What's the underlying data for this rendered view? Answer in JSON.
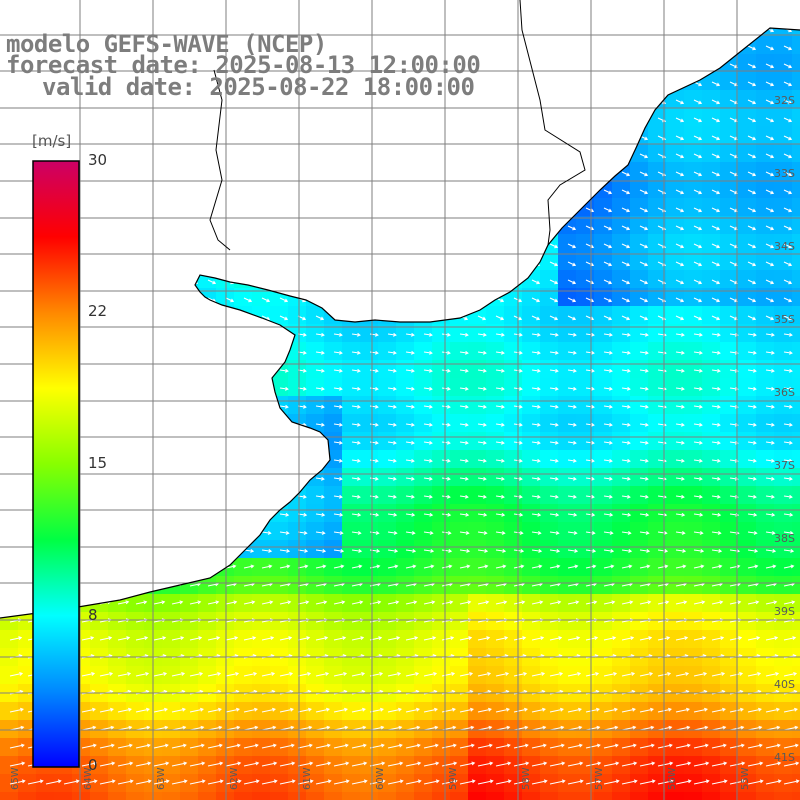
{
  "title": {
    "line1": "modelo GEFS-WAVE (NCEP)",
    "line2": "forecast date: 2025-08-13 12:00:00",
    "line3": "valid date: 2025-08-22 18:00:00"
  },
  "colorbar": {
    "unit": "[m/s]",
    "ticks": [
      "30",
      "22",
      "15",
      "8",
      "0"
    ],
    "tick_values": [
      30,
      22,
      15,
      8,
      0
    ],
    "range": [
      0,
      30
    ],
    "colors": [
      "#0000ff",
      "#0088ff",
      "#00ffff",
      "#00ff44",
      "#88ff00",
      "#ffff00",
      "#ff8800",
      "#ff0000",
      "#cc0066"
    ]
  },
  "lat_labels": [
    "32S",
    "33S",
    "34S",
    "35S",
    "36S",
    "37S",
    "38S",
    "39S",
    "40S",
    "41S"
  ],
  "lon_labels": [
    "65W",
    "64W",
    "63W",
    "62W",
    "61W",
    "60W",
    "59W",
    "58W",
    "57W",
    "56W",
    "55W"
  ],
  "field": {
    "land_color": "#ffffff",
    "grid_color": "#7f7f7f",
    "coast_color": "#000000",
    "arrow_color": "#ffffff"
  }
}
